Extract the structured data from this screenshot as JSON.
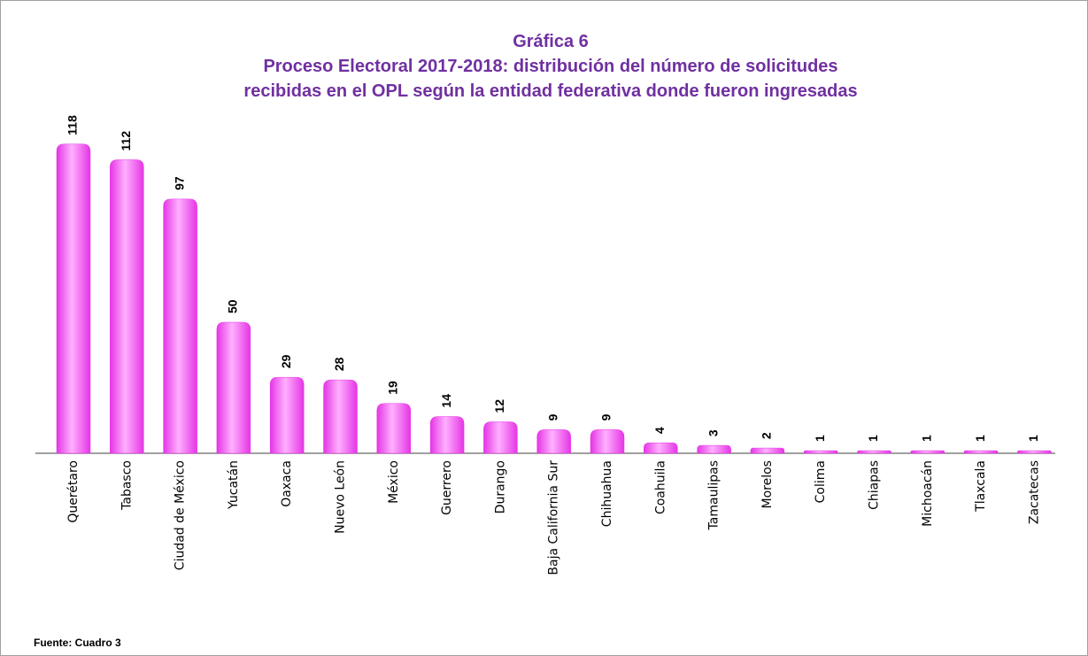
{
  "chart_data": {
    "type": "bar",
    "title": "Gráfica 6",
    "subtitle": [
      "Proceso Electoral 2017-2018: distribución del número de solicitudes",
      "recibidas en el OPL según la entidad federativa donde fueron ingresadas"
    ],
    "categories": [
      "Querétaro",
      "Tabasco",
      "Ciudad de México",
      "Yucatán",
      "Oaxaca",
      "Nuevo León",
      "México",
      "Guerrero",
      "Durango",
      "Baja California Sur",
      "Chihuahua",
      "Coahuila",
      "Tamaulipas",
      "Morelos",
      "Colima",
      "Chiapas",
      "Michoacán",
      "Tlaxcala",
      "Zacatecas"
    ],
    "values": [
      118,
      112,
      97,
      50,
      29,
      28,
      19,
      14,
      12,
      9,
      9,
      4,
      3,
      2,
      1,
      1,
      1,
      1,
      1
    ],
    "color": "#e535e5",
    "source": "Fuente: Cuadro 3"
  }
}
